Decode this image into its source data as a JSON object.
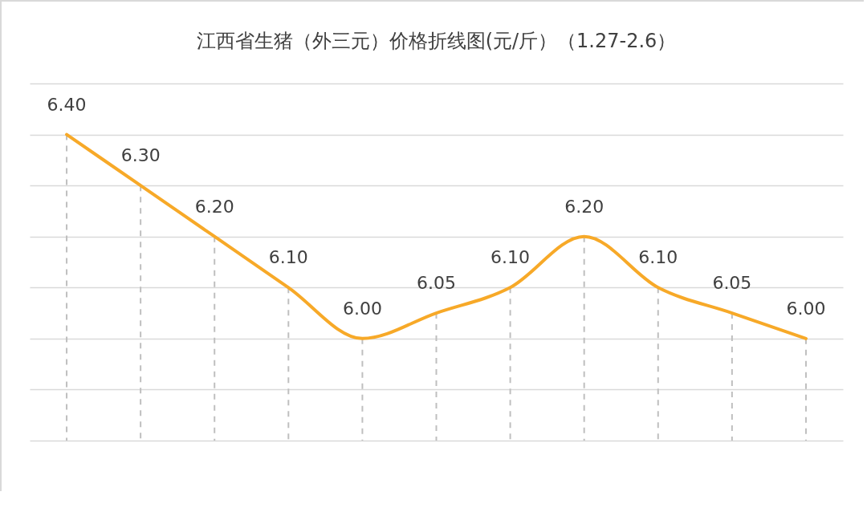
{
  "chart_data": {
    "type": "line",
    "title": "江西省生猪（外三元）价格折线图(元/斤）（1.27-2.6）",
    "categories": [
      null,
      null,
      null,
      null,
      null,
      null,
      null,
      null,
      null,
      null,
      null
    ],
    "series": [
      {
        "color": "#f7a928",
        "values": [
          6.4,
          6.3,
          6.2,
          6.1,
          6.0,
          6.05,
          6.1,
          6.2,
          6.1,
          6.05,
          6.0
        ],
        "value_labels": [
          "6.40",
          "6.30",
          "6.20",
          "6.10",
          "6.00",
          "6.05",
          "6.10",
          "6.20",
          "6.10",
          "6.05",
          "6.00"
        ]
      }
    ],
    "ylim": [
      5.8,
      6.5
    ],
    "yticks": [
      {
        "value": 5.8,
        "label": null
      },
      {
        "value": 5.9,
        "label": null
      },
      {
        "value": 6.0,
        "label": null
      },
      {
        "value": 6.1,
        "label": null
      },
      {
        "value": 6.2,
        "label": null
      },
      {
        "value": 6.3,
        "label": null
      },
      {
        "value": 6.4,
        "label": null
      },
      {
        "value": 6.5,
        "label": null
      }
    ],
    "tick_labels": false,
    "grid": "y",
    "legend": false,
    "marker": "none",
    "line_style": "solid"
  }
}
